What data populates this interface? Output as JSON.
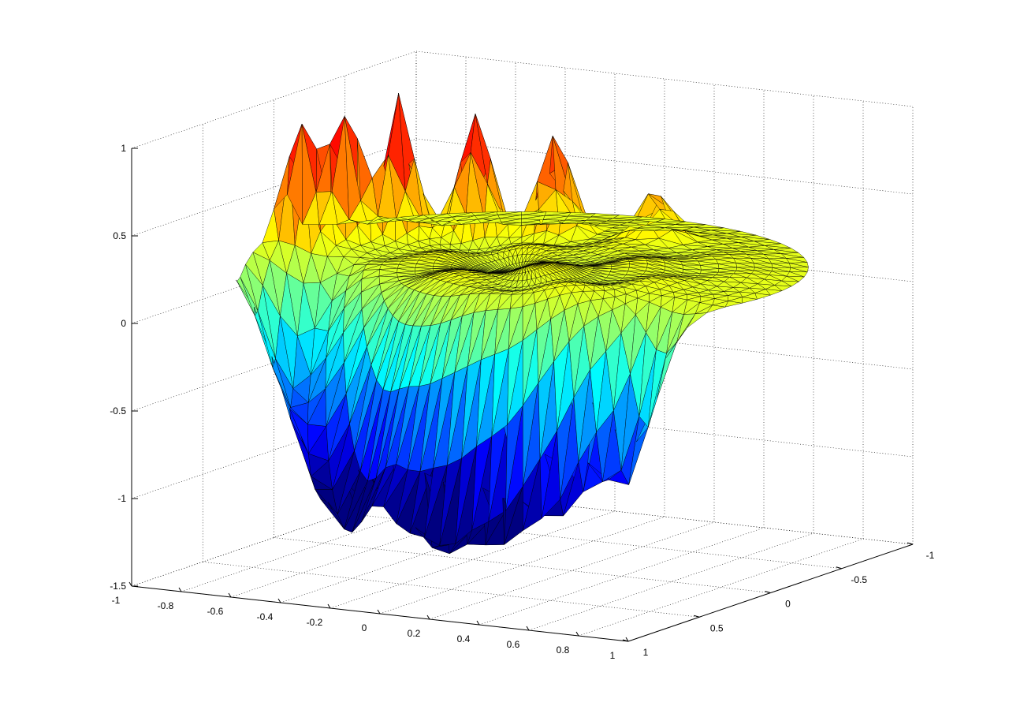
{
  "chart_data": {
    "type": "surface",
    "title": "",
    "xlabel": "",
    "ylabel": "",
    "zlabel": "",
    "colormap": "jet",
    "grid": true,
    "xlim": [
      -1,
      1
    ],
    "ylim": [
      -1,
      1
    ],
    "zlim": [
      -1.5,
      1
    ],
    "x_ticks": [
      "-1",
      "-0.8",
      "-0.6",
      "-0.4",
      "-0.2",
      "0",
      "0.2",
      "0.4",
      "0.6",
      "0.8",
      "1"
    ],
    "y_ticks": [
      "1",
      "0.5",
      "0",
      "-0.5",
      "-1"
    ],
    "z_ticks": [
      "-1.5",
      "-1",
      "-0.5",
      "0",
      "0.5",
      "1"
    ],
    "surface": {
      "domain": "unit disk",
      "rim_value": 0.2,
      "peaks": [
        {
          "x": -0.92,
          "y": -0.05,
          "z": 0.98
        },
        {
          "x": -0.83,
          "y": -0.2,
          "z": 0.98
        },
        {
          "x": -0.68,
          "y": -0.32,
          "z": 1.0
        },
        {
          "x": -0.45,
          "y": -0.45,
          "z": 0.9
        },
        {
          "x": -0.2,
          "y": -0.58,
          "z": 0.78
        },
        {
          "x": 0.15,
          "y": -0.68,
          "z": 0.5
        }
      ],
      "troughs": [
        {
          "x": -0.75,
          "y": 0.3,
          "z": -0.5
        },
        {
          "x": -0.6,
          "y": 0.45,
          "z": -0.62
        },
        {
          "x": -0.45,
          "y": 0.55,
          "z": -0.75
        },
        {
          "x": -0.3,
          "y": 0.62,
          "z": -0.8
        },
        {
          "x": -0.1,
          "y": 0.7,
          "z": -0.88
        },
        {
          "x": 0.1,
          "y": 0.72,
          "z": -0.98
        },
        {
          "x": 0.3,
          "y": 0.68,
          "z": -0.9
        },
        {
          "x": 0.5,
          "y": 0.62,
          "z": -0.82
        },
        {
          "x": 0.7,
          "y": 0.5,
          "z": -0.75
        }
      ]
    }
  }
}
